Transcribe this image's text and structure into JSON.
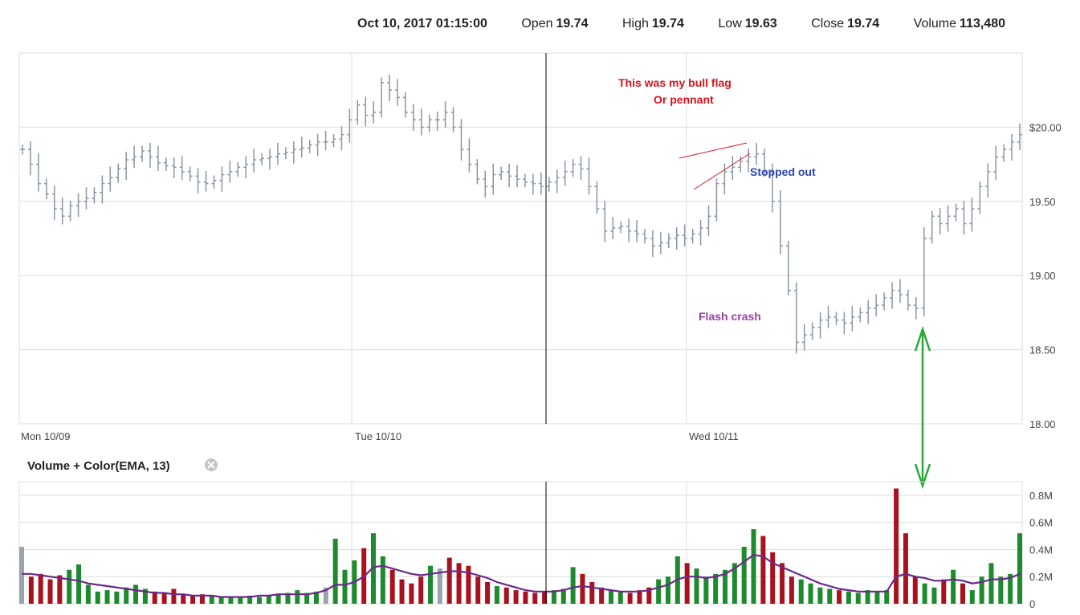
{
  "header": {
    "datetime": "Oct 10, 2017 01:15:00",
    "open_label": "Open",
    "open_value": "19.74",
    "high_label": "High",
    "high_value": "19.74",
    "low_label": "Low",
    "low_value": "19.63",
    "close_label": "Close",
    "close_value": "19.74",
    "volume_label": "Volume",
    "volume_value": "113,480"
  },
  "colors": {
    "price_bar": "#8a96a3",
    "grid": "#dcdcdc",
    "volume_up": "#1e8a2e",
    "volume_down": "#a8121e",
    "volume_flat": "#9aa3ad",
    "ema_line": "#6a2a8a",
    "crosshair": "#000000",
    "annotation_red": "#d8141e",
    "annotation_blue": "#2a44b5",
    "annotation_purple": "#9a3fa8",
    "arrow_green": "#2aa83a"
  },
  "indicator": {
    "title": "Volume + Color(EMA, 13)",
    "remove_icon": "close-icon"
  },
  "annotations": {
    "bull_flag_line1": "This was my bull flag",
    "bull_flag_line2": "Or pennant",
    "stopped_out": "Stopped out",
    "flash_crash": "Flash crash"
  },
  "chart_data": [
    {
      "type": "ohlc",
      "title": "",
      "x_tick_labels": [
        "Mon 10/09",
        "Tue 10/10",
        "Wed 10/11"
      ],
      "y_tick_labels": [
        "$20.00",
        "19.50",
        "19.00",
        "18.50",
        "18.00"
      ],
      "ylim": [
        18.0,
        20.5
      ],
      "grid": true,
      "y_axis_side": "right",
      "price_path_approx": [
        19.85,
        19.75,
        19.62,
        19.55,
        19.45,
        19.4,
        19.47,
        19.5,
        19.52,
        19.56,
        19.62,
        19.66,
        19.72,
        19.78,
        19.8,
        19.84,
        19.8,
        19.76,
        19.74,
        19.73,
        19.7,
        19.67,
        19.63,
        19.62,
        19.64,
        19.68,
        19.7,
        19.73,
        19.75,
        19.78,
        19.79,
        19.8,
        19.82,
        19.83,
        19.85,
        19.86,
        19.88,
        19.9,
        19.9,
        19.92,
        19.95,
        20.05,
        20.15,
        20.08,
        20.1,
        20.3,
        20.25,
        20.2,
        20.1,
        20.05,
        20.0,
        20.05,
        20.05,
        20.1,
        20.0,
        19.85,
        19.75,
        19.65,
        19.6,
        19.68,
        19.7,
        19.67,
        19.65,
        19.63,
        19.62,
        19.6,
        19.63,
        19.66,
        19.7,
        19.75,
        19.72,
        19.6,
        19.45,
        19.3,
        19.32,
        19.33,
        19.3,
        19.28,
        19.25,
        19.2,
        19.22,
        19.25,
        19.27,
        19.25,
        19.28,
        19.32,
        19.4,
        19.62,
        19.7,
        19.73,
        19.77,
        19.8,
        19.82,
        19.7,
        19.5,
        19.2,
        18.9,
        18.55,
        18.6,
        18.65,
        18.7,
        18.72,
        18.7,
        18.68,
        18.72,
        18.75,
        18.78,
        18.8,
        18.85,
        18.9,
        18.87,
        18.8,
        18.78,
        19.25,
        19.4,
        19.35,
        19.4,
        19.45,
        19.35,
        19.45,
        19.6,
        19.7,
        19.8,
        19.85,
        19.9,
        19.95
      ],
      "legend": "none"
    },
    {
      "type": "bar",
      "title": "Volume + Color(EMA, 13)",
      "y_tick_labels": [
        "0.8M",
        "0.6M",
        "0.4M",
        "0.2M",
        "0"
      ],
      "ylim": [
        0,
        0.9
      ],
      "y_unit": "M",
      "series": [
        {
          "name": "Volume",
          "values_approx_M": [
            0.42,
            0.2,
            0.22,
            0.18,
            0.21,
            0.25,
            0.29,
            0.14,
            0.09,
            0.1,
            0.09,
            0.12,
            0.14,
            0.11,
            0.09,
            0.08,
            0.11,
            0.07,
            0.06,
            0.07,
            0.06,
            0.05,
            0.05,
            0.05,
            0.06,
            0.05,
            0.06,
            0.07,
            0.08,
            0.1,
            0.08,
            0.09,
            0.12,
            0.48,
            0.25,
            0.32,
            0.41,
            0.52,
            0.35,
            0.25,
            0.18,
            0.15,
            0.2,
            0.28,
            0.26,
            0.34,
            0.3,
            0.28,
            0.2,
            0.16,
            0.13,
            0.12,
            0.1,
            0.09,
            0.08,
            0.09,
            0.1,
            0.11,
            0.27,
            0.22,
            0.16,
            0.12,
            0.1,
            0.09,
            0.08,
            0.1,
            0.12,
            0.18,
            0.2,
            0.35,
            0.3,
            0.26,
            0.2,
            0.22,
            0.25,
            0.3,
            0.42,
            0.55,
            0.5,
            0.38,
            0.3,
            0.2,
            0.18,
            0.15,
            0.12,
            0.11,
            0.1,
            0.09,
            0.08,
            0.1,
            0.09,
            0.1,
            0.85,
            0.52,
            0.2,
            0.15,
            0.12,
            0.18,
            0.25,
            0.15,
            0.1,
            0.2,
            0.3,
            0.2,
            0.22,
            0.52
          ]
        },
        {
          "name": "EMA 13",
          "values_approx_M": [
            0.22,
            0.22,
            0.21,
            0.2,
            0.19,
            0.18,
            0.17,
            0.15,
            0.14,
            0.13,
            0.12,
            0.11,
            0.1,
            0.09,
            0.08,
            0.08,
            0.07,
            0.07,
            0.06,
            0.06,
            0.06,
            0.05,
            0.05,
            0.05,
            0.05,
            0.06,
            0.06,
            0.07,
            0.07,
            0.07,
            0.07,
            0.08,
            0.1,
            0.14,
            0.14,
            0.16,
            0.2,
            0.27,
            0.28,
            0.26,
            0.24,
            0.22,
            0.21,
            0.22,
            0.23,
            0.24,
            0.24,
            0.23,
            0.21,
            0.19,
            0.16,
            0.14,
            0.12,
            0.1,
            0.09,
            0.09,
            0.09,
            0.1,
            0.12,
            0.13,
            0.12,
            0.11,
            0.1,
            0.09,
            0.09,
            0.09,
            0.1,
            0.12,
            0.14,
            0.18,
            0.2,
            0.2,
            0.19,
            0.2,
            0.22,
            0.26,
            0.31,
            0.36,
            0.35,
            0.3,
            0.27,
            0.24,
            0.21,
            0.18,
            0.15,
            0.13,
            0.11,
            0.1,
            0.09,
            0.09,
            0.09,
            0.09,
            0.2,
            0.22,
            0.2,
            0.19,
            0.17,
            0.17,
            0.18,
            0.17,
            0.15,
            0.16,
            0.18,
            0.18,
            0.19,
            0.22
          ]
        }
      ],
      "legend": "none"
    }
  ]
}
